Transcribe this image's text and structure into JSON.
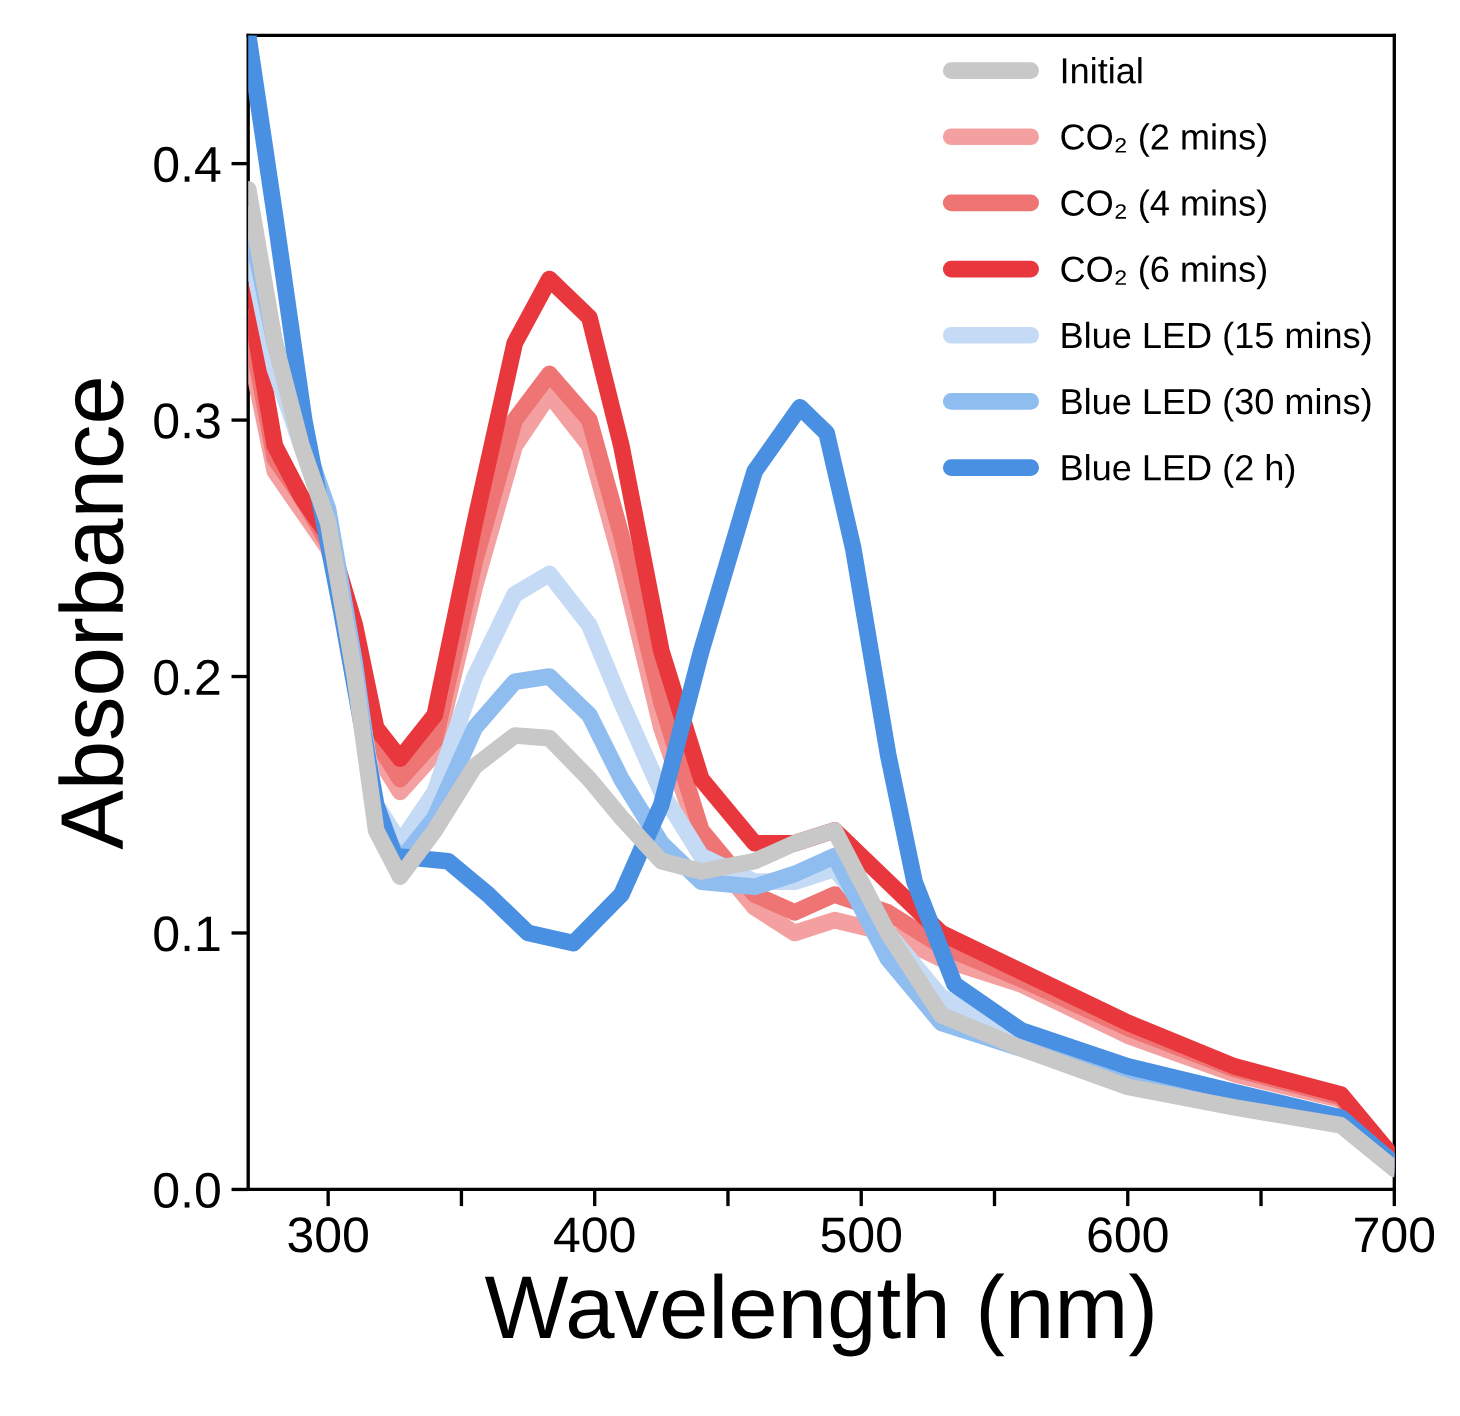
{
  "chart_data": {
    "type": "line",
    "xlabel": "Wavelength (nm)",
    "ylabel": "Absorbance",
    "x": [
      270,
      280,
      290,
      300,
      310,
      318,
      327,
      340,
      355,
      370,
      383,
      398,
      410,
      425,
      440,
      460,
      475,
      490,
      510,
      530,
      560,
      600,
      640,
      680,
      700
    ],
    "series": [
      {
        "name": "Initial",
        "color": "#c8c8c8",
        "values": [
          0.39,
          0.33,
          0.29,
          0.26,
          0.2,
          0.14,
          0.122,
          0.14,
          0.165,
          0.177,
          0.176,
          0.16,
          0.145,
          0.128,
          0.124,
          0.128,
          0.135,
          0.14,
          0.1,
          0.068,
          0.055,
          0.04,
          0.032,
          0.025,
          0.008
        ]
      },
      {
        "name": "CO₂ (2 mins)",
        "color": "#f5a0a0",
        "values": [
          0.33,
          0.28,
          0.265,
          0.25,
          0.215,
          0.17,
          0.155,
          0.17,
          0.235,
          0.29,
          0.31,
          0.29,
          0.245,
          0.18,
          0.135,
          0.11,
          0.1,
          0.105,
          0.1,
          0.09,
          0.08,
          0.06,
          0.045,
          0.035,
          0.012
        ]
      },
      {
        "name": "CO₂ (4 mins)",
        "color": "#ef7575",
        "values": [
          0.34,
          0.285,
          0.27,
          0.252,
          0.218,
          0.175,
          0.16,
          0.175,
          0.245,
          0.3,
          0.318,
          0.3,
          0.255,
          0.19,
          0.14,
          0.115,
          0.108,
          0.115,
          0.108,
          0.095,
          0.082,
          0.063,
          0.047,
          0.036,
          0.012
        ]
      },
      {
        "name": "CO₂ (6 mins)",
        "color": "#e8383d",
        "values": [
          0.35,
          0.29,
          0.27,
          0.255,
          0.22,
          0.18,
          0.168,
          0.185,
          0.26,
          0.33,
          0.355,
          0.34,
          0.29,
          0.21,
          0.16,
          0.135,
          0.135,
          0.14,
          0.12,
          0.1,
          0.085,
          0.065,
          0.048,
          0.037,
          0.012
        ]
      },
      {
        "name": "Blue LED (15 mins)",
        "color": "#c5daf5",
        "values": [
          0.37,
          0.32,
          0.29,
          0.26,
          0.2,
          0.15,
          0.135,
          0.155,
          0.2,
          0.232,
          0.24,
          0.22,
          0.19,
          0.155,
          0.13,
          0.12,
          0.12,
          0.125,
          0.1,
          0.075,
          0.06,
          0.045,
          0.035,
          0.027,
          0.01
        ]
      },
      {
        "name": "Blue LED (30 mins)",
        "color": "#8fbdf0",
        "values": [
          0.38,
          0.33,
          0.295,
          0.265,
          0.205,
          0.145,
          0.128,
          0.145,
          0.18,
          0.198,
          0.2,
          0.185,
          0.16,
          0.135,
          0.12,
          0.118,
          0.123,
          0.13,
          0.09,
          0.065,
          0.055,
          0.042,
          0.033,
          0.026,
          0.009
        ]
      },
      {
        "name": "Blue LED (2 h)",
        "color": "#4a90e2",
        "x": [
          270,
          280,
          291,
          305,
          318,
          325,
          345,
          360,
          375,
          392,
          410,
          425,
          440,
          460,
          477,
          487,
          497,
          510,
          520,
          535,
          560,
          600,
          640,
          680,
          700
        ],
        "values": [
          0.45,
          0.38,
          0.3,
          0.225,
          0.15,
          0.13,
          0.128,
          0.115,
          0.1,
          0.096,
          0.115,
          0.15,
          0.21,
          0.28,
          0.305,
          0.295,
          0.25,
          0.17,
          0.12,
          0.08,
          0.062,
          0.048,
          0.038,
          0.028,
          0.01
        ]
      }
    ],
    "xlim": [
      270,
      700
    ],
    "ylim": [
      0,
      0.45
    ],
    "xticks": [
      300,
      {
        "value": 350,
        "label": null
      },
      400,
      {
        "value": 450,
        "label": null
      },
      500,
      {
        "value": 550,
        "label": null
      },
      600,
      {
        "value": 650,
        "label": null
      },
      700
    ],
    "yticks": [
      {
        "value": 0,
        "label": "0.0"
      },
      0.1,
      0.2,
      0.3,
      0.4
    ],
    "legend": "top right",
    "grid": false
  }
}
